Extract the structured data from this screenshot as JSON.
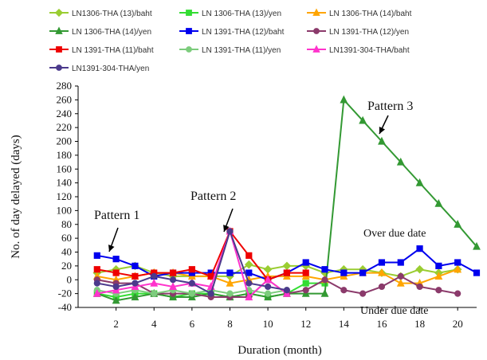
{
  "chart_data": {
    "type": "line",
    "title": "",
    "xlabel": "Duration (month)",
    "ylabel": "No. of day delayed (days)",
    "xlim": [
      0,
      21
    ],
    "ylim": [
      -40,
      280
    ],
    "xticks": [
      2,
      4,
      6,
      8,
      10,
      12,
      14,
      16,
      18,
      20
    ],
    "yticks": [
      -40,
      -20,
      0,
      20,
      40,
      60,
      80,
      100,
      120,
      140,
      160,
      180,
      200,
      220,
      240,
      260,
      280
    ],
    "grid": false,
    "legend_position": "top",
    "annotations": [
      {
        "text": "Pattern 1"
      },
      {
        "text": "Pattern 2"
      },
      {
        "text": "Pattern 3"
      },
      {
        "text": "Over due date"
      },
      {
        "text": "Under due date"
      }
    ],
    "series": [
      {
        "name": "LN1306-THA (13)/baht",
        "color": "#9acd32",
        "marker": "diamond",
        "x": [
          1,
          2,
          3,
          4,
          5,
          6,
          7,
          8,
          9,
          10,
          11,
          12,
          13,
          14,
          15,
          16,
          17,
          18,
          19,
          20
        ],
        "y": [
          10,
          15,
          20,
          10,
          5,
          5,
          5,
          5,
          22,
          15,
          20,
          20,
          10,
          15,
          15,
          10,
          5,
          15,
          10,
          15
        ]
      },
      {
        "name": "LN 1306-THA (13)/yen",
        "color": "#33dd33",
        "marker": "square",
        "x": [
          1,
          2,
          3,
          4,
          5,
          6,
          7,
          8,
          9,
          10,
          11,
          12,
          13
        ],
        "y": [
          -20,
          -25,
          -20,
          -20,
          -25,
          -20,
          -20,
          -25,
          -20,
          -25,
          -20,
          -5,
          -5
        ]
      },
      {
        "name": "LN 1306-THA (14)/baht",
        "color": "#ffa500",
        "marker": "triangle",
        "x": [
          1,
          2,
          3,
          4,
          5,
          6,
          7,
          8,
          9,
          10,
          11,
          12,
          13,
          14,
          15,
          16,
          17,
          18,
          19,
          20
        ],
        "y": [
          5,
          0,
          5,
          10,
          10,
          5,
          5,
          -5,
          0,
          5,
          5,
          5,
          0,
          5,
          10,
          10,
          -5,
          -5,
          5,
          15
        ]
      },
      {
        "name": "LN 1306-THA (14)/yen",
        "color": "#339933",
        "marker": "triangle",
        "x": [
          1,
          2,
          3,
          4,
          5,
          6,
          7,
          8,
          9,
          10,
          11,
          12,
          13,
          14,
          15,
          16,
          17,
          18,
          19,
          20,
          21
        ],
        "y": [
          -20,
          -30,
          -25,
          -20,
          -25,
          -25,
          -20,
          -25,
          -20,
          -25,
          -20,
          -20,
          -20,
          260,
          230,
          200,
          170,
          140,
          110,
          80,
          48
        ]
      },
      {
        "name": "LN 1391-THA (12)/baht",
        "color": "#0000ee",
        "marker": "square",
        "x": [
          1,
          2,
          3,
          4,
          5,
          6,
          7,
          8,
          9,
          10,
          11,
          12,
          13,
          14,
          15,
          16,
          17,
          18,
          19,
          20,
          21
        ],
        "y": [
          35,
          30,
          20,
          5,
          10,
          10,
          10,
          10,
          10,
          0,
          10,
          25,
          15,
          10,
          10,
          25,
          25,
          45,
          20,
          25,
          10
        ]
      },
      {
        "name": "LN 1391-THA (12)/yen",
        "color": "#8b3a6b",
        "marker": "circle",
        "x": [
          1,
          2,
          3,
          4,
          5,
          6,
          7,
          8,
          9,
          10,
          11,
          12,
          13,
          14,
          15,
          16,
          17,
          18,
          19,
          20
        ],
        "y": [
          0,
          -5,
          -5,
          -20,
          -20,
          -20,
          -25,
          -25,
          -25,
          0,
          -20,
          -15,
          0,
          -15,
          -20,
          -10,
          5,
          -10,
          -15,
          -20
        ]
      },
      {
        "name": "LN 1391-THA (11)/baht",
        "color": "#ee0000",
        "marker": "square",
        "x": [
          1,
          2,
          3,
          4,
          5,
          6,
          7,
          8,
          9,
          10,
          11,
          12
        ],
        "y": [
          15,
          10,
          5,
          10,
          10,
          15,
          5,
          70,
          35,
          0,
          10,
          10
        ]
      },
      {
        "name": "LN 1391-THA (11)/yen",
        "color": "#7ccc7c",
        "marker": "circle",
        "x": [
          1,
          2,
          3,
          4,
          5,
          6,
          7,
          8,
          9,
          10,
          11
        ],
        "y": [
          -15,
          -20,
          -15,
          -20,
          -15,
          -20,
          -15,
          -20,
          -15,
          -20,
          -15
        ]
      },
      {
        "name": "LN1391-304-THA/baht",
        "color": "#ff33cc",
        "marker": "triangle",
        "x": [
          1,
          2,
          3,
          4,
          5,
          6,
          7,
          8,
          9,
          10,
          11
        ],
        "y": [
          -20,
          -15,
          -10,
          -5,
          -10,
          -5,
          -10,
          70,
          -25,
          0,
          -20
        ]
      },
      {
        "name": "LN1391-304-THA/yen",
        "color": "#4b3a8c",
        "marker": "circle",
        "x": [
          1,
          2,
          3,
          4,
          5,
          6,
          7,
          8,
          9,
          10,
          11
        ],
        "y": [
          -5,
          -10,
          -5,
          5,
          0,
          -5,
          -20,
          70,
          -5,
          -10,
          -15
        ]
      }
    ]
  }
}
